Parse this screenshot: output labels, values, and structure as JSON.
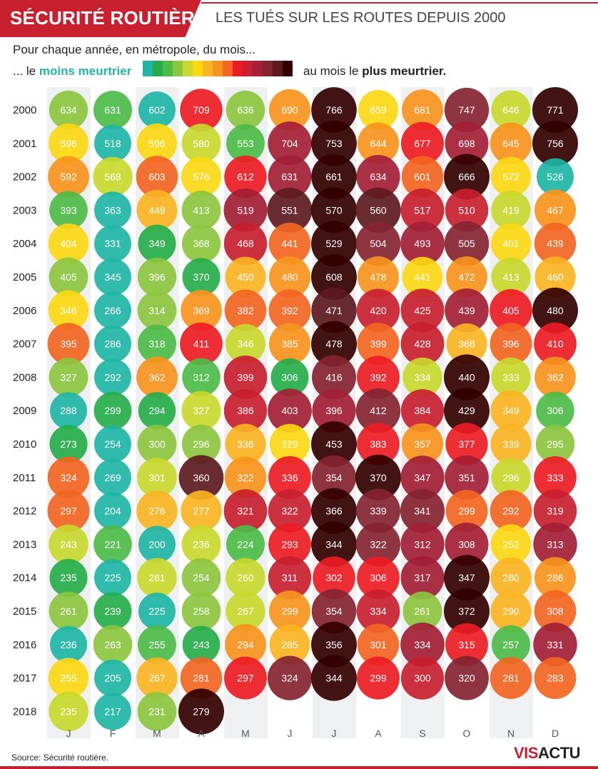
{
  "header": {
    "title": "SÉCURITÉ ROUTIÈRE",
    "subtitle": "LES TUÉS SUR LES ROUTES DEPUIS 2000"
  },
  "legend": {
    "line1": "Pour chaque année, en métropole, du mois...",
    "prefix": "... le",
    "least": "moins meurtrier",
    "suffix": "au mois le",
    "most": "plus meurtrier.",
    "scale_colors": [
      "#1fb5a5",
      "#26ad4a",
      "#4dbb48",
      "#8cc640",
      "#c8d82e",
      "#fbd812",
      "#fbb422",
      "#f7941d",
      "#f26522",
      "#ed1c24",
      "#c8202f",
      "#a32035",
      "#842431",
      "#5c1a20",
      "#330000"
    ]
  },
  "source": "Source: Sécurité routière.",
  "logo": {
    "part1": "VIS",
    "part2": "ACTU"
  },
  "chart_data": {
    "type": "heatmap",
    "title": "LES TUÉS SUR LES ROUTES DEPUIS 2000",
    "x": [
      "J",
      "F",
      "M",
      "A",
      "M",
      "J",
      "J",
      "A",
      "S",
      "O",
      "N",
      "D"
    ],
    "y": [
      "2000",
      "2001",
      "2002",
      "2003",
      "2004",
      "2005",
      "2006",
      "2007",
      "2008",
      "2009",
      "2010",
      "2011",
      "2012",
      "2013",
      "2014",
      "2015",
      "2016",
      "2017",
      "2018"
    ],
    "values": [
      [
        634,
        631,
        602,
        709,
        636,
        690,
        766,
        659,
        681,
        747,
        646,
        771
      ],
      [
        596,
        518,
        596,
        580,
        553,
        704,
        753,
        644,
        677,
        698,
        645,
        756
      ],
      [
        592,
        568,
        603,
        576,
        612,
        631,
        661,
        634,
        601,
        666,
        572,
        526
      ],
      [
        393,
        363,
        449,
        413,
        519,
        551,
        570,
        560,
        517,
        510,
        419,
        467
      ],
      [
        404,
        331,
        349,
        368,
        468,
        441,
        529,
        504,
        493,
        505,
        401,
        439
      ],
      [
        405,
        345,
        396,
        370,
        450,
        480,
        608,
        478,
        441,
        472,
        413,
        460
      ],
      [
        346,
        266,
        314,
        369,
        382,
        392,
        471,
        420,
        425,
        439,
        405,
        480
      ],
      [
        395,
        286,
        318,
        411,
        346,
        385,
        478,
        399,
        428,
        368,
        396,
        410
      ],
      [
        327,
        292,
        362,
        312,
        399,
        306,
        416,
        392,
        334,
        440,
        333,
        362
      ],
      [
        288,
        299,
        294,
        327,
        386,
        403,
        396,
        412,
        384,
        429,
        349,
        306
      ],
      [
        273,
        254,
        300,
        296,
        336,
        329,
        453,
        383,
        357,
        377,
        339,
        295
      ],
      [
        324,
        269,
        301,
        360,
        322,
        336,
        354,
        370,
        347,
        351,
        296,
        333
      ],
      [
        297,
        204,
        276,
        277,
        321,
        322,
        366,
        339,
        341,
        299,
        292,
        319
      ],
      [
        243,
        221,
        200,
        236,
        224,
        293,
        344,
        322,
        312,
        308,
        252,
        313
      ],
      [
        235,
        225,
        261,
        254,
        260,
        311,
        302,
        306,
        317,
        347,
        280,
        286
      ],
      [
        261,
        239,
        225,
        258,
        267,
        299,
        354,
        334,
        261,
        372,
        290,
        308
      ],
      [
        236,
        263,
        255,
        243,
        294,
        285,
        356,
        301,
        334,
        315,
        257,
        331
      ],
      [
        255,
        205,
        267,
        281,
        297,
        324,
        344,
        299,
        300,
        320,
        281,
        283
      ],
      [
        235,
        217,
        231,
        279,
        null,
        null,
        null,
        null,
        null,
        null,
        null,
        null
      ]
    ]
  }
}
